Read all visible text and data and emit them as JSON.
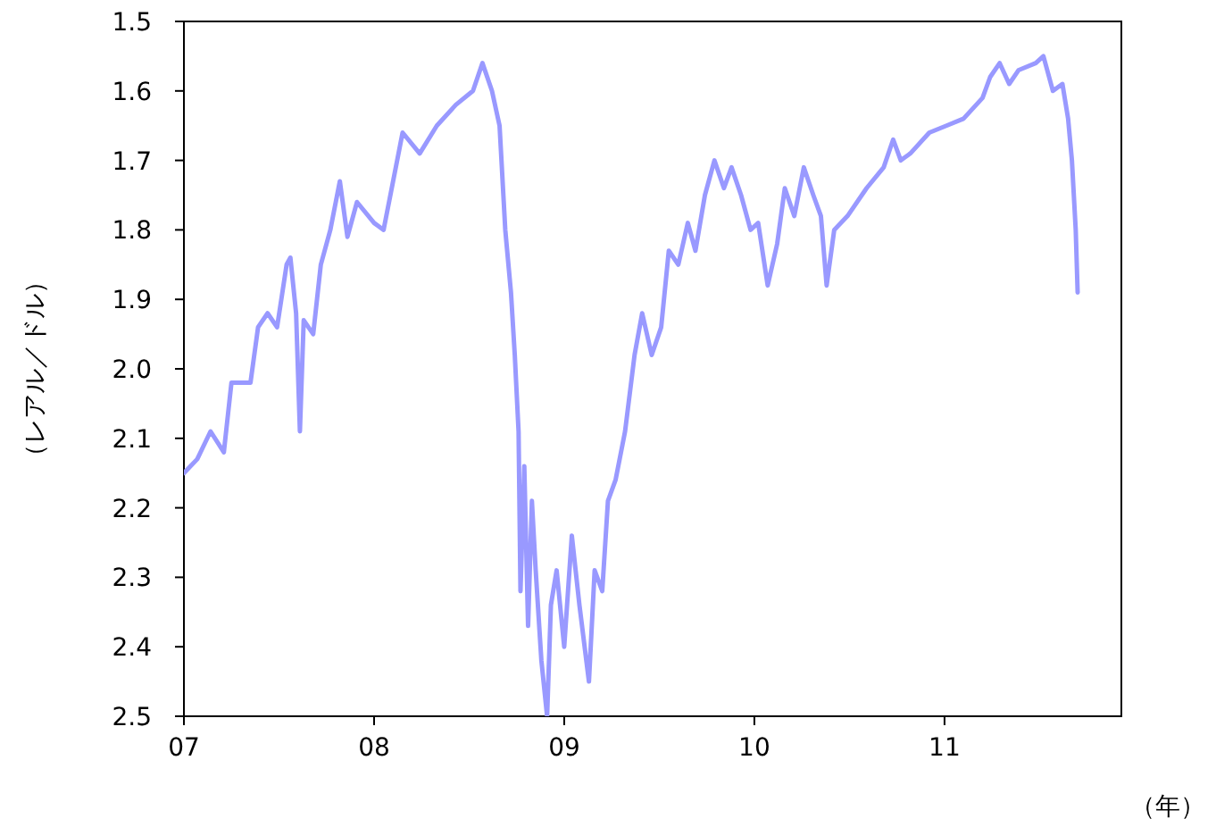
{
  "chart_data": {
    "type": "line",
    "ylabel": "（レアル／ドル）",
    "xlabel": "（年）",
    "x": [
      2007.0,
      2007.07,
      2007.14,
      2007.21,
      2007.25,
      2007.35,
      2007.39,
      2007.44,
      2007.49,
      2007.54,
      2007.56,
      2007.59,
      2007.61,
      2007.63,
      2007.68,
      2007.72,
      2007.77,
      2007.82,
      2007.86,
      2007.91,
      2008.0,
      2008.05,
      2008.1,
      2008.15,
      2008.24,
      2008.33,
      2008.43,
      2008.52,
      2008.57,
      2008.62,
      2008.66,
      2008.69,
      2008.72,
      2008.74,
      2008.76,
      2008.77,
      2008.79,
      2008.81,
      2008.83,
      2008.85,
      2008.88,
      2008.91,
      2008.93,
      2008.96,
      2009.0,
      2009.04,
      2009.08,
      2009.13,
      2009.16,
      2009.2,
      2009.23,
      2009.27,
      2009.32,
      2009.37,
      2009.41,
      2009.46,
      2009.51,
      2009.55,
      2009.6,
      2009.65,
      2009.69,
      2009.74,
      2009.79,
      2009.84,
      2009.88,
      2009.93,
      2009.98,
      2010.02,
      2010.07,
      2010.12,
      2010.16,
      2010.21,
      2010.26,
      2010.31,
      2010.35,
      2010.38,
      2010.42,
      2010.49,
      2010.59,
      2010.68,
      2010.73,
      2010.77,
      2010.82,
      2010.92,
      2011.01,
      2011.1,
      2011.2,
      2011.24,
      2011.29,
      2011.34,
      2011.39,
      2011.48,
      2011.52,
      2011.57,
      2011.62,
      2011.65,
      2011.67,
      2011.69,
      2011.7
    ],
    "series": [
      {
        "color": "#9999ff",
        "values": [
          2.15,
          2.13,
          2.09,
          2.12,
          2.02,
          2.02,
          1.94,
          1.92,
          1.94,
          1.85,
          1.84,
          1.92,
          2.09,
          1.93,
          1.95,
          1.85,
          1.8,
          1.73,
          1.81,
          1.76,
          1.79,
          1.8,
          1.73,
          1.66,
          1.69,
          1.65,
          1.62,
          1.6,
          1.56,
          1.6,
          1.65,
          1.8,
          1.89,
          1.98,
          2.09,
          2.32,
          2.14,
          2.37,
          2.19,
          2.29,
          2.42,
          2.5,
          2.34,
          2.29,
          2.4,
          2.24,
          2.34,
          2.45,
          2.29,
          2.32,
          2.19,
          2.16,
          2.09,
          1.98,
          1.92,
          1.98,
          1.94,
          1.83,
          1.85,
          1.79,
          1.83,
          1.75,
          1.7,
          1.74,
          1.71,
          1.75,
          1.8,
          1.79,
          1.88,
          1.82,
          1.74,
          1.78,
          1.71,
          1.75,
          1.78,
          1.88,
          1.8,
          1.78,
          1.74,
          1.71,
          1.67,
          1.7,
          1.69,
          1.66,
          1.65,
          1.64,
          1.61,
          1.58,
          1.56,
          1.59,
          1.57,
          1.56,
          1.55,
          1.6,
          1.59,
          1.64,
          1.7,
          1.8,
          1.89
        ]
      }
    ],
    "xlim": [
      2007,
      2011.93
    ],
    "xticks": [
      {
        "value": 2007,
        "label": "07"
      },
      {
        "value": 2008,
        "label": "08"
      },
      {
        "value": 2009,
        "label": "09"
      },
      {
        "value": 2010,
        "label": "10"
      },
      {
        "value": 2011,
        "label": "11"
      }
    ],
    "ylim": [
      2.5,
      1.5
    ],
    "yticks": [
      {
        "value": 1.5,
        "label": "1.5"
      },
      {
        "value": 1.6,
        "label": "1.6"
      },
      {
        "value": 1.7,
        "label": "1.7"
      },
      {
        "value": 1.8,
        "label": "1.8"
      },
      {
        "value": 1.9,
        "label": "1.9"
      },
      {
        "value": 2.0,
        "label": "2.0"
      },
      {
        "value": 2.1,
        "label": "2.1"
      },
      {
        "value": 2.2,
        "label": "2.2"
      },
      {
        "value": 2.3,
        "label": "2.3"
      },
      {
        "value": 2.4,
        "label": "2.4"
      },
      {
        "value": 2.5,
        "label": "2.5"
      }
    ],
    "grid": false
  }
}
